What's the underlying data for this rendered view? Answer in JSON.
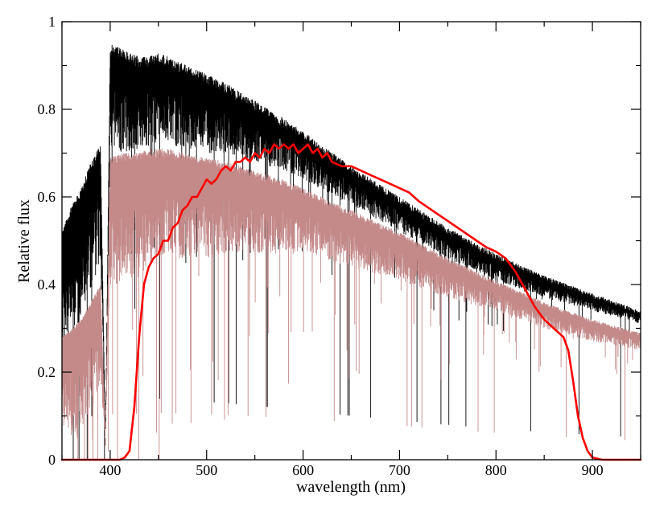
{
  "chart_data": {
    "type": "line",
    "title": "",
    "xlabel": "wavelength (nm)",
    "ylabel": "Relative flux",
    "xlim": [
      350,
      950
    ],
    "ylim": [
      0,
      1
    ],
    "xticks": [
      400,
      500,
      600,
      700,
      800,
      900
    ],
    "xtick_labels": [
      "400",
      "500",
      "600",
      "700",
      "800",
      "900"
    ],
    "yticks": [
      0,
      0.2,
      0.4,
      0.6,
      0.8,
      1
    ],
    "ytick_labels": [
      "0",
      "0.2",
      "0.4",
      "0.6",
      "0.8",
      "1"
    ],
    "grid": false,
    "legend": "none",
    "series": [
      {
        "name": "stellar spectrum (black)",
        "color": "#000000",
        "style": "dense absorption-line spectrum",
        "continuum_x": [
          350,
          360,
          370,
          380,
          390,
          395,
          400,
          410,
          420,
          430,
          440,
          450,
          460,
          480,
          500,
          520,
          550,
          580,
          600,
          650,
          700,
          750,
          800,
          850,
          900,
          950
        ],
        "continuum_y": [
          0.52,
          0.58,
          0.62,
          0.68,
          0.72,
          0.05,
          0.95,
          0.94,
          0.93,
          0.92,
          0.92,
          0.93,
          0.92,
          0.9,
          0.88,
          0.86,
          0.82,
          0.78,
          0.75,
          0.67,
          0.6,
          0.53,
          0.47,
          0.42,
          0.38,
          0.34
        ],
        "band_depth": [
          0.28,
          0.3,
          0.32,
          0.3,
          0.28,
          0.02,
          0.25,
          0.24,
          0.23,
          0.22,
          0.21,
          0.2,
          0.2,
          0.19,
          0.18,
          0.16,
          0.14,
          0.12,
          0.11,
          0.09,
          0.08,
          0.07,
          0.06,
          0.05,
          0.04,
          0.03
        ]
      },
      {
        "name": "stellar spectrum (rosy brown)",
        "color": "#c48a8a",
        "style": "dense absorption-line spectrum",
        "continuum_x": [
          350,
          360,
          370,
          380,
          390,
          395,
          400,
          410,
          420,
          430,
          440,
          450,
          460,
          480,
          500,
          520,
          550,
          580,
          600,
          650,
          700,
          750,
          800,
          850,
          900,
          950
        ],
        "continuum_y": [
          0.28,
          0.3,
          0.32,
          0.36,
          0.4,
          0.05,
          0.69,
          0.7,
          0.7,
          0.7,
          0.71,
          0.71,
          0.71,
          0.7,
          0.69,
          0.68,
          0.66,
          0.64,
          0.62,
          0.57,
          0.52,
          0.46,
          0.41,
          0.36,
          0.32,
          0.29
        ],
        "band_depth": [
          0.22,
          0.24,
          0.25,
          0.25,
          0.22,
          0.02,
          0.3,
          0.3,
          0.29,
          0.28,
          0.27,
          0.26,
          0.25,
          0.24,
          0.23,
          0.21,
          0.19,
          0.17,
          0.15,
          0.13,
          0.11,
          0.09,
          0.07,
          0.06,
          0.05,
          0.04
        ]
      },
      {
        "name": "filter transmission (red)",
        "color": "#ff0000",
        "style": "smooth curve",
        "x": [
          350,
          410,
          415,
          420,
          425,
          430,
          435,
          440,
          445,
          450,
          455,
          460,
          465,
          470,
          475,
          480,
          485,
          490,
          495,
          500,
          505,
          510,
          515,
          520,
          525,
          530,
          535,
          540,
          545,
          550,
          555,
          560,
          565,
          570,
          575,
          580,
          585,
          590,
          595,
          600,
          605,
          610,
          615,
          620,
          625,
          630,
          640,
          650,
          660,
          670,
          680,
          690,
          700,
          710,
          720,
          740,
          760,
          780,
          790,
          800,
          810,
          820,
          830,
          840,
          850,
          860,
          870,
          875,
          880,
          885,
          890,
          895,
          900,
          910,
          950
        ],
        "y": [
          0.0,
          0.0,
          0.005,
          0.02,
          0.12,
          0.28,
          0.4,
          0.44,
          0.46,
          0.47,
          0.5,
          0.5,
          0.53,
          0.54,
          0.57,
          0.58,
          0.6,
          0.6,
          0.62,
          0.64,
          0.63,
          0.64,
          0.66,
          0.67,
          0.66,
          0.68,
          0.68,
          0.69,
          0.68,
          0.7,
          0.69,
          0.71,
          0.7,
          0.72,
          0.71,
          0.72,
          0.71,
          0.72,
          0.7,
          0.71,
          0.72,
          0.7,
          0.71,
          0.69,
          0.7,
          0.68,
          0.67,
          0.67,
          0.66,
          0.65,
          0.64,
          0.63,
          0.62,
          0.61,
          0.59,
          0.56,
          0.53,
          0.5,
          0.485,
          0.475,
          0.46,
          0.43,
          0.39,
          0.35,
          0.32,
          0.3,
          0.28,
          0.25,
          0.18,
          0.1,
          0.05,
          0.02,
          0.005,
          0.0,
          0.0
        ]
      }
    ]
  }
}
